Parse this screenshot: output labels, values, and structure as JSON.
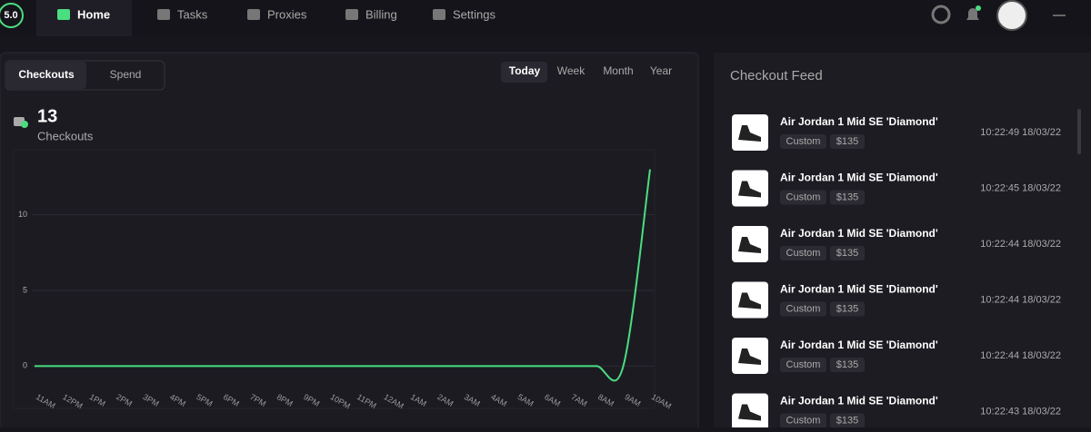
{
  "nav": {
    "logo": "5.0",
    "items": [
      "Home",
      "Tasks",
      "Proxies",
      "Billing",
      "Settings"
    ]
  },
  "tabs": [
    "Checkouts",
    "Spend"
  ],
  "ranges": [
    "Today",
    "Week",
    "Month",
    "Year"
  ],
  "stat": {
    "value": 13,
    "label": "Checkouts"
  },
  "chart_data": {
    "type": "line",
    "categories": [
      "11AM",
      "12PM",
      "1PM",
      "2PM",
      "3PM",
      "4PM",
      "5PM",
      "6PM",
      "7PM",
      "8PM",
      "9PM",
      "10PM",
      "11PM",
      "12AM",
      "1AM",
      "2AM",
      "3AM",
      "4AM",
      "5AM",
      "6AM",
      "7AM",
      "8AM",
      "9AM",
      "10AM"
    ],
    "values": [
      0,
      0,
      0,
      0,
      0,
      0,
      0,
      0,
      0,
      0,
      0,
      0,
      0,
      0,
      0,
      0,
      0,
      0,
      0,
      0,
      0,
      0,
      0,
      13
    ],
    "color": "#4ade80",
    "ylim": [
      -2.8,
      14.3
    ],
    "yticks": [
      0,
      5,
      10
    ],
    "grid": true
  },
  "feed": {
    "title": "Checkout Feed",
    "items": [
      {
        "name": "Air Jordan 1 Mid SE 'Diamond'",
        "tags": [
          "Custom",
          "$135"
        ],
        "time": "10:22:49 18/03/22"
      },
      {
        "name": "Air Jordan 1 Mid SE 'Diamond'",
        "tags": [
          "Custom",
          "$135"
        ],
        "time": "10:22:45 18/03/22"
      },
      {
        "name": "Air Jordan 1 Mid SE 'Diamond'",
        "tags": [
          "Custom",
          "$135"
        ],
        "time": "10:22:44 18/03/22"
      },
      {
        "name": "Air Jordan 1 Mid SE 'Diamond'",
        "tags": [
          "Custom",
          "$135"
        ],
        "time": "10:22:44 18/03/22"
      },
      {
        "name": "Air Jordan 1 Mid SE 'Diamond'",
        "tags": [
          "Custom",
          "$135"
        ],
        "time": "10:22:44 18/03/22"
      },
      {
        "name": "Air Jordan 1 Mid SE 'Diamond'",
        "tags": [
          "Custom",
          "$135"
        ],
        "time": "10:22:43 18/03/22"
      }
    ]
  }
}
